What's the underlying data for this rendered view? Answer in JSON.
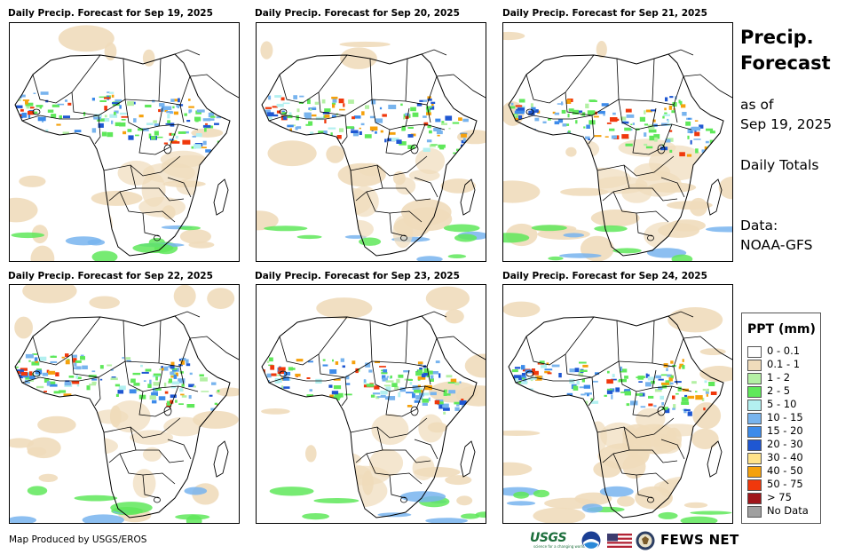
{
  "panels": [
    {
      "title": "Daily Precip. Forecast for Sep 19, 2025"
    },
    {
      "title": "Daily Precip. Forecast for Sep 20, 2025"
    },
    {
      "title": "Daily Precip. Forecast for Sep 21, 2025"
    },
    {
      "title": "Daily Precip. Forecast for Sep 22, 2025"
    },
    {
      "title": "Daily Precip. Forecast for Sep 23, 2025"
    },
    {
      "title": "Daily Precip. Forecast for Sep 24, 2025"
    }
  ],
  "side": {
    "title_line1": "Precip.",
    "title_line2": "Forecast",
    "as_of": "as of",
    "date": "Sep 19, 2025",
    "totals": "Daily Totals",
    "data_label": "Data:",
    "data_source": "NOAA-GFS"
  },
  "legend": {
    "title": "PPT (mm)",
    "items": [
      {
        "label": "0 - 0.1",
        "color": "#ffffff"
      },
      {
        "label": "0.1 - 1",
        "color": "#f0dcbb"
      },
      {
        "label": "1 - 2",
        "color": "#b4f0a4"
      },
      {
        "label": "2 - 5",
        "color": "#5fe85a"
      },
      {
        "label": "5 - 10",
        "color": "#b3f0f0"
      },
      {
        "label": "10 - 15",
        "color": "#78b4ee"
      },
      {
        "label": "15 - 20",
        "color": "#3d8bea"
      },
      {
        "label": "20 - 30",
        "color": "#1f57d2"
      },
      {
        "label": "30 - 40",
        "color": "#ffe38a"
      },
      {
        "label": "40 - 50",
        "color": "#f5a10c"
      },
      {
        "label": "50 - 75",
        "color": "#f0380c"
      },
      {
        "label": "> 75",
        "color": "#a0151a"
      },
      {
        "label": "No Data",
        "color": "#a0a0a0"
      }
    ]
  },
  "footer": {
    "credit": "Map Produced by USGS/EROS",
    "usgs_logo_text": "USGS",
    "usgs_tagline": "science for a changing world",
    "fews_text": "FEWS NET"
  },
  "icons": {
    "noaa": "noaa-logo-icon",
    "flag": "us-flag-icon",
    "seal": "us-dos-seal-icon"
  }
}
